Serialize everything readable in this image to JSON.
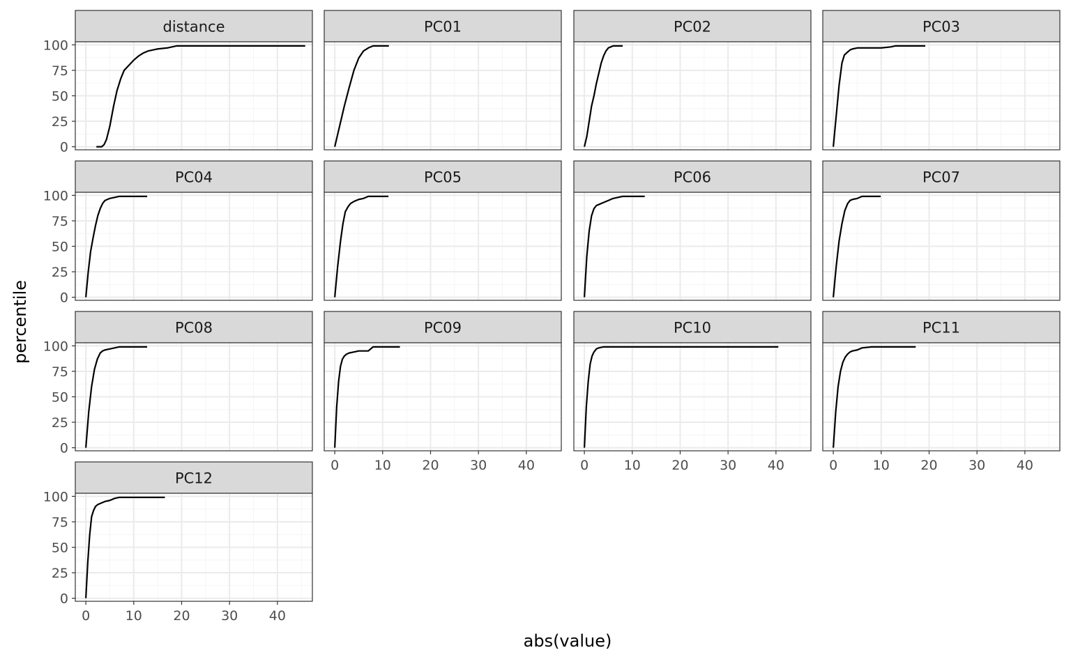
{
  "chart_data": {
    "type": "line",
    "layout": "facet-grid",
    "xlabel": "abs(value)",
    "ylabel": "percentile",
    "xlim": [
      -2.2,
      47.3
    ],
    "ylim": [
      -3,
      103
    ],
    "x_ticks": [
      0,
      10,
      20,
      30,
      40
    ],
    "y_ticks": [
      0,
      25,
      50,
      75,
      100
    ],
    "x_tick_labels": [
      "0",
      "10",
      "20",
      "30",
      "40"
    ],
    "y_tick_labels": [
      "0",
      "25",
      "50",
      "75",
      "100"
    ],
    "grid": true,
    "colors": {
      "line": "#000000",
      "strip_fill": "#d9d9d9",
      "panel_border": "#333333",
      "grid_major": "#ebebeb",
      "grid_minor": "#f5f5f5",
      "tick_label": "#4d4d4d",
      "axis_title": "#000000"
    },
    "panels": [
      {
        "label": "distance",
        "x": [
          2.2,
          3.3,
          3.8,
          4.3,
          5.0,
          5.8,
          6.5,
          7.3,
          8.0,
          9.0,
          10.0,
          11.0,
          12.0,
          13.0,
          14.0,
          15.0,
          17.0,
          19.0,
          25.0,
          35.0,
          45.8
        ],
        "y": [
          0,
          0,
          2,
          7,
          20,
          40,
          55,
          67,
          75,
          80,
          85,
          89,
          92,
          94,
          95,
          96,
          97,
          99,
          99,
          99,
          99
        ]
      },
      {
        "label": "PC01",
        "x": [
          0,
          1,
          2,
          3,
          4,
          5,
          6,
          7,
          8,
          9,
          11.3
        ],
        "y": [
          0,
          20,
          40,
          58,
          75,
          87,
          94,
          97,
          99,
          99,
          99
        ]
      },
      {
        "label": "PC02",
        "x": [
          0,
          0.5,
          1,
          1.5,
          2,
          2.5,
          3,
          3.5,
          4,
          4.5,
          5,
          5.5,
          6,
          8
        ],
        "y": [
          0,
          10,
          25,
          40,
          50,
          62,
          72,
          82,
          89,
          94,
          97,
          98,
          99,
          99
        ]
      },
      {
        "label": "PC03",
        "x": [
          0,
          0.6,
          1.2,
          1.8,
          2.3,
          3,
          3.5,
          4,
          5,
          7,
          10,
          12,
          13,
          15,
          19.2
        ],
        "y": [
          0,
          30,
          60,
          82,
          90,
          93,
          95,
          96,
          97,
          97,
          97,
          98,
          99,
          99,
          99
        ]
      },
      {
        "label": "PC04",
        "x": [
          0,
          0.5,
          1,
          1.5,
          2,
          2.5,
          3,
          3.5,
          4,
          4.5,
          5,
          6,
          7,
          8,
          12.8
        ],
        "y": [
          0,
          25,
          45,
          58,
          70,
          80,
          87,
          92,
          95,
          96,
          97,
          98,
          99,
          99,
          99
        ]
      },
      {
        "label": "PC05",
        "x": [
          0,
          0.6,
          1.2,
          1.7,
          2.2,
          2.8,
          3.3,
          4,
          5,
          6,
          7,
          8,
          11.2
        ],
        "y": [
          0,
          30,
          55,
          72,
          84,
          89,
          92,
          94,
          96,
          97,
          99,
          99,
          99
        ]
      },
      {
        "label": "PC06",
        "x": [
          0,
          0.5,
          1,
          1.5,
          2,
          2.5,
          3,
          4,
          5,
          6,
          7,
          8,
          12.6
        ],
        "y": [
          0,
          40,
          65,
          80,
          87,
          90,
          91,
          93,
          95,
          97,
          98,
          99,
          99
        ]
      },
      {
        "label": "PC07",
        "x": [
          0,
          0.6,
          1.2,
          1.8,
          2.4,
          3,
          3.5,
          4,
          5,
          6,
          9.9
        ],
        "y": [
          0,
          30,
          55,
          72,
          85,
          92,
          95,
          96,
          97,
          99,
          99
        ]
      },
      {
        "label": "PC08",
        "x": [
          0,
          0.6,
          1.2,
          1.8,
          2.4,
          3,
          3.5,
          4,
          5,
          6,
          7,
          12.8
        ],
        "y": [
          0,
          35,
          60,
          77,
          87,
          93,
          95,
          96,
          97,
          98,
          99,
          99
        ]
      },
      {
        "label": "PC09",
        "x": [
          0,
          0.4,
          0.8,
          1.2,
          1.6,
          2,
          2.5,
          3,
          4,
          5,
          6,
          7,
          7.5,
          8,
          9,
          13.6
        ],
        "y": [
          0,
          40,
          65,
          80,
          87,
          90,
          92,
          93,
          94,
          95,
          95,
          95,
          97,
          99,
          99,
          99
        ]
      },
      {
        "label": "PC10",
        "x": [
          0,
          0.4,
          0.8,
          1.2,
          1.6,
          2,
          2.5,
          3,
          4,
          10,
          20,
          30,
          40.5
        ],
        "y": [
          0,
          40,
          65,
          82,
          90,
          94,
          97,
          98,
          99,
          99,
          99,
          99,
          99
        ]
      },
      {
        "label": "PC11",
        "x": [
          0,
          0.5,
          1,
          1.5,
          2,
          2.5,
          3,
          3.5,
          4,
          5,
          6,
          8,
          12,
          17.2
        ],
        "y": [
          0,
          35,
          60,
          75,
          84,
          89,
          92,
          94,
          95,
          96,
          98,
          99,
          99,
          99
        ]
      },
      {
        "label": "PC12",
        "x": [
          0,
          0.4,
          0.8,
          1.2,
          1.6,
          2,
          2.5,
          3,
          4,
          5,
          6,
          7,
          10,
          16.5
        ],
        "y": [
          0,
          35,
          62,
          80,
          86,
          90,
          92,
          93,
          95,
          96,
          98,
          99,
          99,
          99
        ]
      }
    ]
  }
}
